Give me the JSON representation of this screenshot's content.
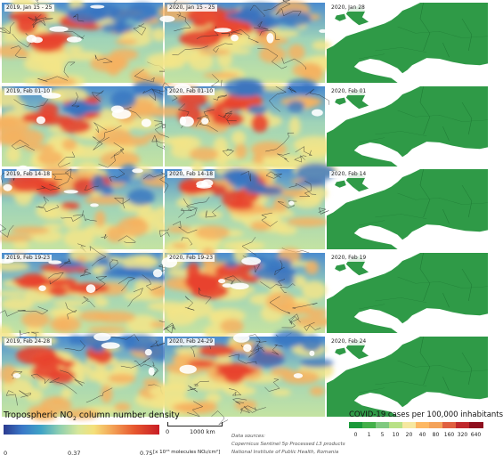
{
  "panels": {
    "col2019": [
      "2019, Jan 15 - 25",
      "2019, Feb 01-10",
      "2019, Feb 14-18",
      "2019, Feb 19-23",
      "2019, Feb 24-28"
    ],
    "col2020": [
      "2020, Jan 15 - 25",
      "2020, Feb 01-10",
      "2020, Feb 14-18",
      "2020, Feb 19-23",
      "2020, Feb 24-29"
    ],
    "covid": [
      "2020, Jan 28",
      "2020, Feb 01",
      "2020, Feb 14",
      "2020, Feb 19",
      "2020, Feb 24"
    ]
  },
  "no2_legend": {
    "title_prefix": "Tropospheric NO",
    "title_sub": "2",
    "title_suffix": " column number density",
    "tick_min": "0",
    "tick_mid": "0.37",
    "tick_max": "0.75",
    "unit": "[x 10¹⁵ molecules NO₂/cm²]"
  },
  "scale_bar": {
    "zero": "0",
    "label": "1000 km"
  },
  "sources": {
    "heading": "Data sources:",
    "line1": "Copernicus Sentinel 5p Processed L3 products",
    "line2": "National Institute of Public Health, Romania"
  },
  "covid_legend": {
    "title": "COVID-19 cases per 100,000 inhabitants",
    "ticks": [
      "0",
      "1",
      "5",
      "10",
      "20",
      "40",
      "80",
      "160",
      "320",
      "640"
    ],
    "colors": [
      "#1a9a3a",
      "#43b049",
      "#7fc97f",
      "#b8e186",
      "#f6e8a0",
      "#fdb863",
      "#f4a259",
      "#e06040",
      "#c0282c",
      "#8e0f1e"
    ]
  },
  "colors": {
    "covid_green": "#2f9a47",
    "no2_low": "#3a78c8",
    "no2_mid": "#e8e48a",
    "no2_high": "#d8232a"
  }
}
